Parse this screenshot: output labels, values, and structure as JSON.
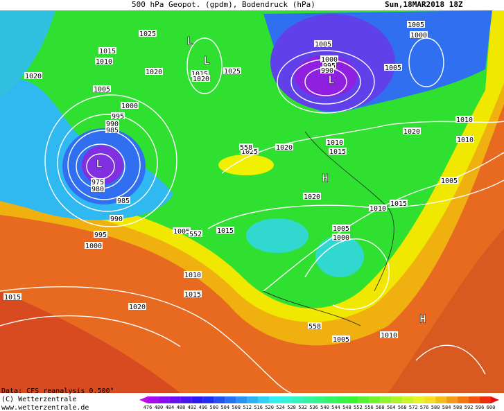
{
  "header": {
    "title": "500 hPa Geopot. (gpdm), Bodendruck (hPa)",
    "date": "Sun,18MAR2018 18Z"
  },
  "map": {
    "contour_labels": [
      "1025",
      "1015",
      "1010",
      "1020",
      "1020",
      "1015",
      "1020",
      "1025",
      "1005",
      "1000",
      "995",
      "990",
      "985",
      "975",
      "980",
      "985",
      "990",
      "995",
      "1000",
      "1005",
      "552",
      "1015",
      "1010",
      "1015",
      "1015",
      "1020",
      "1005",
      "1000",
      "995",
      "990",
      "1005",
      "1000",
      "1005",
      "1020",
      "1010",
      "1010",
      "1010",
      "1015",
      "1020",
      "1025",
      "558",
      "1020",
      "1005",
      "1015",
      "1010",
      "1005",
      "1000",
      "558",
      "1005",
      "1010"
    ],
    "markers": [
      "L",
      "L",
      "L",
      "L",
      "H",
      "H"
    ]
  },
  "footer": {
    "source": "Data: CFS reanalysis 0.500°",
    "copyright": "(C) Wetterzentrale",
    "url": "www.wetterzentrale.de"
  },
  "colorbar": {
    "labels": [
      476,
      480,
      484,
      488,
      492,
      496,
      500,
      504,
      508,
      512,
      516,
      520,
      524,
      528,
      532,
      536,
      540,
      544,
      548,
      552,
      556,
      560,
      564,
      568,
      572,
      576,
      580,
      584,
      588,
      592,
      596,
      600
    ]
  }
}
